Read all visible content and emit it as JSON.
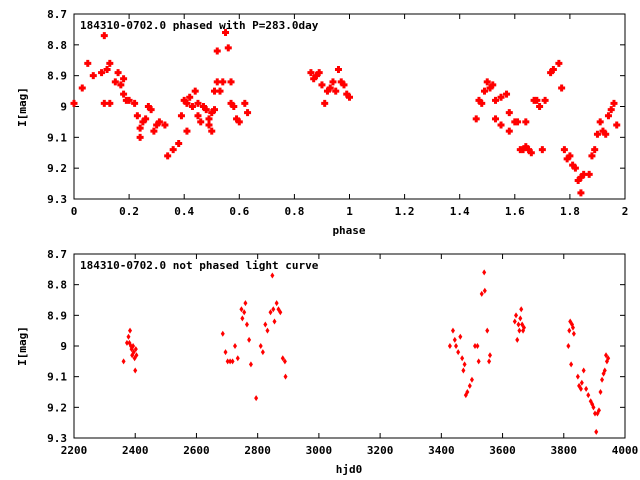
{
  "colors": {
    "points": "#ff0000",
    "axes": "#000000",
    "background": "#ffffff"
  },
  "chart_data": [
    {
      "type": "scatter",
      "title": "184310-0702.0 phased with P=283.0day",
      "xlabel": "phase",
      "ylabel": "I[mag]",
      "xlim": [
        0,
        2
      ],
      "ylim": [
        8.7,
        9.3
      ],
      "y_inverted": true,
      "xticks": [
        "0",
        "0.2",
        "0.4",
        "0.6",
        "0.8",
        "1",
        "1.2",
        "1.4",
        "1.6",
        "1.8",
        "2"
      ],
      "yticks": [
        "8.7",
        "8.8",
        "8.9",
        "9",
        "9.1",
        "9.2",
        "9.3"
      ],
      "grid": false,
      "marker": "filled-circle",
      "points": [
        [
          0.0,
          8.99
        ],
        [
          0.03,
          8.94
        ],
        [
          0.05,
          8.86
        ],
        [
          0.07,
          8.9
        ],
        [
          0.1,
          8.89
        ],
        [
          0.11,
          8.77
        ],
        [
          0.11,
          8.99
        ],
        [
          0.12,
          8.88
        ],
        [
          0.13,
          8.86
        ],
        [
          0.13,
          8.99
        ],
        [
          0.15,
          8.92
        ],
        [
          0.16,
          8.89
        ],
        [
          0.17,
          8.93
        ],
        [
          0.18,
          8.96
        ],
        [
          0.18,
          8.91
        ],
        [
          0.19,
          8.98
        ],
        [
          0.2,
          8.98
        ],
        [
          0.22,
          8.99
        ],
        [
          0.23,
          9.03
        ],
        [
          0.24,
          9.07
        ],
        [
          0.24,
          9.1
        ],
        [
          0.25,
          9.05
        ],
        [
          0.26,
          9.04
        ],
        [
          0.27,
          9.0
        ],
        [
          0.28,
          9.01
        ],
        [
          0.29,
          9.08
        ],
        [
          0.3,
          9.06
        ],
        [
          0.31,
          9.05
        ],
        [
          0.33,
          9.06
        ],
        [
          0.34,
          9.16
        ],
        [
          0.36,
          9.14
        ],
        [
          0.38,
          9.12
        ],
        [
          0.39,
          9.03
        ],
        [
          0.4,
          8.98
        ],
        [
          0.41,
          9.08
        ],
        [
          0.41,
          8.99
        ],
        [
          0.42,
          8.97
        ],
        [
          0.43,
          9.0
        ],
        [
          0.44,
          8.95
        ],
        [
          0.45,
          9.03
        ],
        [
          0.45,
          8.99
        ],
        [
          0.46,
          9.05
        ],
        [
          0.47,
          9.0
        ],
        [
          0.48,
          9.01
        ],
        [
          0.49,
          9.06
        ],
        [
          0.49,
          9.04
        ],
        [
          0.5,
          9.02
        ],
        [
          0.5,
          9.08
        ],
        [
          0.51,
          8.95
        ],
        [
          0.51,
          9.01
        ],
        [
          0.52,
          8.92
        ],
        [
          0.52,
          8.82
        ],
        [
          0.53,
          8.95
        ],
        [
          0.54,
          8.92
        ],
        [
          0.55,
          8.76
        ],
        [
          0.56,
          8.81
        ],
        [
          0.57,
          8.92
        ],
        [
          0.57,
          8.99
        ],
        [
          0.58,
          9.0
        ],
        [
          0.59,
          9.04
        ],
        [
          0.6,
          9.05
        ],
        [
          0.62,
          8.99
        ],
        [
          0.63,
          9.02
        ],
        [
          0.86,
          8.89
        ],
        [
          0.87,
          8.91
        ],
        [
          0.88,
          8.9
        ],
        [
          0.89,
          8.89
        ],
        [
          0.9,
          8.93
        ],
        [
          0.91,
          8.99
        ],
        [
          0.92,
          8.95
        ],
        [
          0.93,
          8.94
        ],
        [
          0.94,
          8.92
        ],
        [
          0.95,
          8.95
        ],
        [
          0.96,
          8.88
        ],
        [
          0.97,
          8.92
        ],
        [
          0.98,
          8.93
        ],
        [
          0.99,
          8.96
        ],
        [
          1.0,
          8.97
        ],
        [
          1.46,
          9.04
        ],
        [
          1.47,
          8.98
        ],
        [
          1.48,
          8.99
        ],
        [
          1.49,
          8.95
        ],
        [
          1.5,
          8.92
        ],
        [
          1.51,
          8.94
        ],
        [
          1.52,
          8.93
        ],
        [
          1.53,
          8.98
        ],
        [
          1.53,
          9.04
        ],
        [
          1.55,
          8.97
        ],
        [
          1.55,
          9.06
        ],
        [
          1.57,
          8.96
        ],
        [
          1.58,
          9.08
        ],
        [
          1.58,
          9.02
        ],
        [
          1.6,
          9.05
        ],
        [
          1.61,
          9.05
        ],
        [
          1.62,
          9.14
        ],
        [
          1.63,
          9.14
        ],
        [
          1.64,
          9.13
        ],
        [
          1.64,
          9.05
        ],
        [
          1.65,
          9.14
        ],
        [
          1.66,
          9.15
        ],
        [
          1.67,
          8.98
        ],
        [
          1.68,
          8.98
        ],
        [
          1.69,
          9.0
        ],
        [
          1.7,
          9.14
        ],
        [
          1.71,
          8.98
        ],
        [
          1.73,
          8.89
        ],
        [
          1.74,
          8.88
        ],
        [
          1.76,
          8.86
        ],
        [
          1.77,
          8.94
        ],
        [
          1.78,
          9.14
        ],
        [
          1.79,
          9.17
        ],
        [
          1.8,
          9.16
        ],
        [
          1.81,
          9.19
        ],
        [
          1.82,
          9.2
        ],
        [
          1.83,
          9.24
        ],
        [
          1.84,
          9.23
        ],
        [
          1.84,
          9.28
        ],
        [
          1.85,
          9.22
        ],
        [
          1.87,
          9.22
        ],
        [
          1.88,
          9.16
        ],
        [
          1.89,
          9.14
        ],
        [
          1.9,
          9.09
        ],
        [
          1.91,
          9.05
        ],
        [
          1.92,
          9.08
        ],
        [
          1.93,
          9.09
        ],
        [
          1.94,
          9.03
        ],
        [
          1.95,
          9.01
        ],
        [
          1.96,
          8.99
        ],
        [
          1.97,
          9.06
        ]
      ]
    },
    {
      "type": "scatter",
      "title": "184310-0702.0 not phased light curve",
      "xlabel": "hjd0",
      "ylabel": "I[mag]",
      "xlim": [
        2200,
        4000
      ],
      "ylim": [
        8.7,
        9.3
      ],
      "y_inverted": true,
      "xticks": [
        "2200",
        "2400",
        "2600",
        "2800",
        "3000",
        "3200",
        "3400",
        "3600",
        "3800",
        "4000"
      ],
      "yticks": [
        "8.7",
        "8.8",
        "8.9",
        "9",
        "9.1",
        "9.2",
        "9.3"
      ],
      "grid": false,
      "marker": "small-diamond",
      "points": [
        [
          2362,
          9.05
        ],
        [
          2373,
          8.99
        ],
        [
          2378,
          8.97
        ],
        [
          2381,
          8.99
        ],
        [
          2383,
          8.95
        ],
        [
          2386,
          9.0
        ],
        [
          2388,
          9.01
        ],
        [
          2390,
          9.03
        ],
        [
          2393,
          9.0
        ],
        [
          2395,
          9.02
        ],
        [
          2398,
          9.04
        ],
        [
          2400,
          9.08
        ],
        [
          2402,
          9.01
        ],
        [
          2404,
          9.03
        ],
        [
          2686,
          8.96
        ],
        [
          2695,
          9.02
        ],
        [
          2702,
          9.05
        ],
        [
          2710,
          9.05
        ],
        [
          2718,
          9.05
        ],
        [
          2726,
          9.0
        ],
        [
          2735,
          9.04
        ],
        [
          2747,
          8.88
        ],
        [
          2750,
          8.91
        ],
        [
          2756,
          8.89
        ],
        [
          2760,
          8.86
        ],
        [
          2765,
          8.93
        ],
        [
          2772,
          8.98
        ],
        [
          2778,
          9.06
        ],
        [
          2795,
          9.17
        ],
        [
          2810,
          9.0
        ],
        [
          2817,
          9.02
        ],
        [
          2825,
          8.93
        ],
        [
          2832,
          8.95
        ],
        [
          2842,
          8.89
        ],
        [
          2848,
          8.77
        ],
        [
          2851,
          8.88
        ],
        [
          2855,
          8.92
        ],
        [
          2862,
          8.86
        ],
        [
          2868,
          8.88
        ],
        [
          2874,
          8.89
        ],
        [
          2882,
          9.04
        ],
        [
          2889,
          9.05
        ],
        [
          2891,
          9.1
        ],
        [
          3428,
          9.0
        ],
        [
          3438,
          8.95
        ],
        [
          3444,
          8.98
        ],
        [
          3448,
          9.0
        ],
        [
          3455,
          9.02
        ],
        [
          3462,
          8.97
        ],
        [
          3468,
          9.04
        ],
        [
          3472,
          9.08
        ],
        [
          3476,
          9.06
        ],
        [
          3480,
          9.16
        ],
        [
          3485,
          9.15
        ],
        [
          3493,
          9.13
        ],
        [
          3500,
          9.11
        ],
        [
          3510,
          9.0
        ],
        [
          3518,
          9.0
        ],
        [
          3522,
          9.05
        ],
        [
          3532,
          8.83
        ],
        [
          3540,
          8.76
        ],
        [
          3542,
          8.82
        ],
        [
          3550,
          8.95
        ],
        [
          3556,
          9.05
        ],
        [
          3559,
          9.03
        ],
        [
          3640,
          8.92
        ],
        [
          3644,
          8.9
        ],
        [
          3648,
          8.98
        ],
        [
          3652,
          8.93
        ],
        [
          3655,
          8.95
        ],
        [
          3658,
          8.91
        ],
        [
          3661,
          8.88
        ],
        [
          3664,
          8.93
        ],
        [
          3667,
          8.95
        ],
        [
          3670,
          8.94
        ],
        [
          3815,
          9.0
        ],
        [
          3818,
          8.95
        ],
        [
          3821,
          8.92
        ],
        [
          3824,
          9.06
        ],
        [
          3827,
          8.93
        ],
        [
          3830,
          8.94
        ],
        [
          3833,
          8.96
        ],
        [
          3846,
          9.1
        ],
        [
          3850,
          9.13
        ],
        [
          3856,
          9.14
        ],
        [
          3859,
          9.12
        ],
        [
          3865,
          9.08
        ],
        [
          3873,
          9.14
        ],
        [
          3880,
          9.16
        ],
        [
          3888,
          9.18
        ],
        [
          3893,
          9.19
        ],
        [
          3897,
          9.2
        ],
        [
          3902,
          9.22
        ],
        [
          3906,
          9.28
        ],
        [
          3910,
          9.22
        ],
        [
          3915,
          9.21
        ],
        [
          3920,
          9.15
        ],
        [
          3925,
          9.11
        ],
        [
          3930,
          9.09
        ],
        [
          3934,
          9.08
        ],
        [
          3938,
          9.03
        ],
        [
          3941,
          9.05
        ],
        [
          3945,
          9.04
        ]
      ]
    }
  ]
}
